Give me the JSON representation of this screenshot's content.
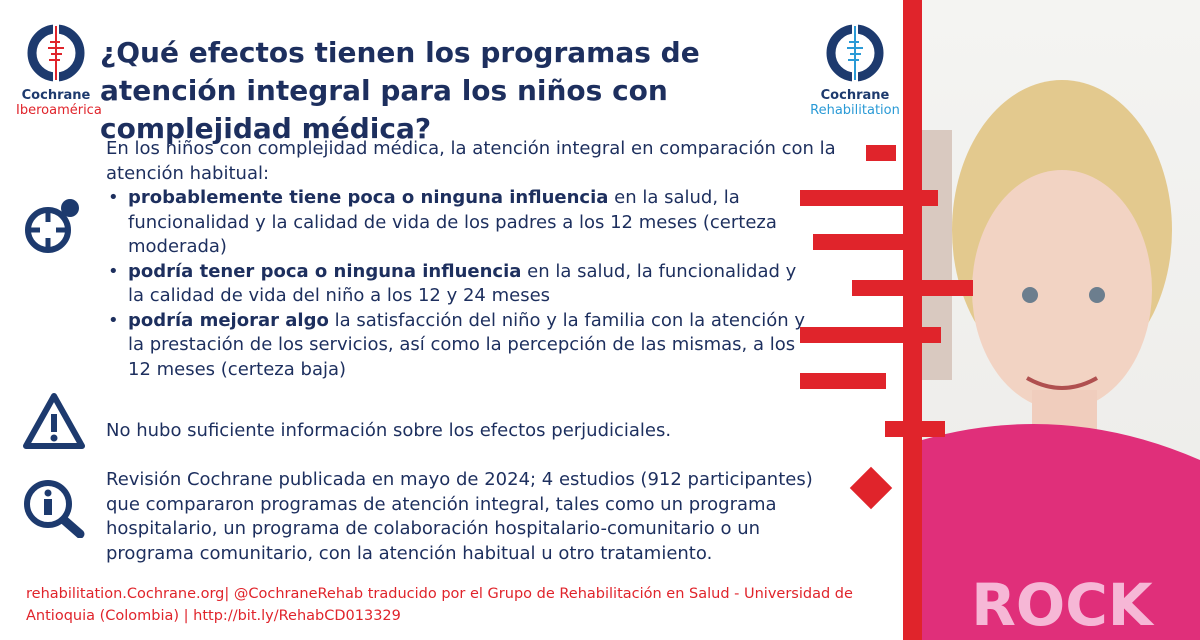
{
  "logos": {
    "left": {
      "line1": "Cochrane",
      "line2": "Iberoamérica"
    },
    "right": {
      "line1": "Cochrane",
      "line2": "Rehabilitation"
    }
  },
  "title": "¿Qué efectos tienen los programas de atención integral para los niños con complejidad médica?",
  "intro": "En los niños con complejidad médica, la atención integral en comparación con la atención habitual:",
  "bullets": [
    {
      "bold": "probablemente tiene poca o ninguna influencia",
      "rest": " en la salud, la funcionalidad y la calidad de vida de los padres a los 12 meses (certeza moderada)"
    },
    {
      "bold": "podría tener poca o ninguna influencia",
      "rest": " en la salud, la funcionalidad y la calidad de vida del niño a los 12 y 24 meses"
    },
    {
      "bold": "podría mejorar algo",
      "rest": " la satisfacción del niño y la familia con la atención y la prestación de los servicios, así como la percepción de las mismas, a los 12 meses (certeza baja)"
    }
  ],
  "harms": "No hubo suficiente información sobre los efectos perjudiciales.",
  "info": "Revisión Cochrane publicada en mayo de 2024; 4 estudios (912 participantes) que compararon programas de atención integral, tales como un programa hospitalario, un programa de colaboración hospitalario-comunitario o un programa comunitario, con la atención habitual u otro tratamiento.",
  "footer": "rehabilitation.Cochrane.org| @CochraneRehab traducido por el Grupo de Rehabilitación en Salud - Universidad de Antioquia (Colombia) | http://bit.ly/RehabCD013329",
  "photo": {
    "shirt_text": "ROCK"
  },
  "colors": {
    "navy": "#1d2f5e",
    "red": "#e0242b",
    "blue": "#2a9ad6"
  }
}
